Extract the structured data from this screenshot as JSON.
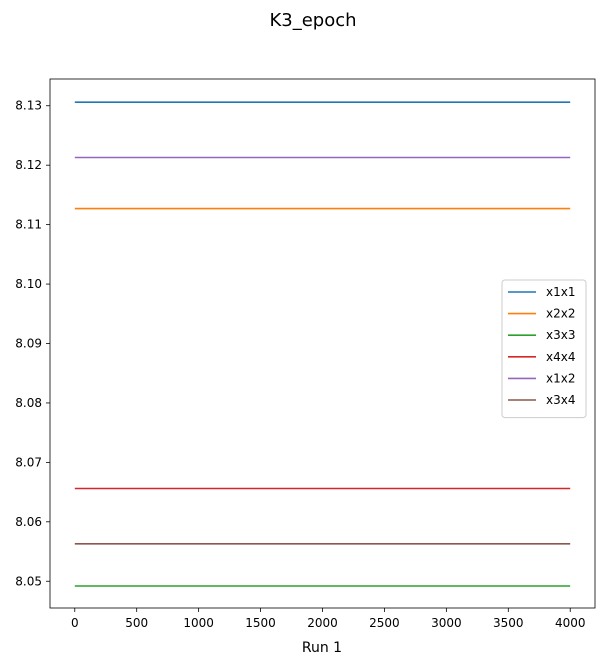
{
  "chart_data": {
    "type": "line",
    "title": "K3_epoch",
    "xlabel": "Run 1",
    "ylabel": "",
    "xlim": [
      -200,
      4200
    ],
    "ylim": [
      8.0455,
      8.1345
    ],
    "xticks": [
      0,
      500,
      1000,
      1500,
      2000,
      2500,
      3000,
      3500,
      4000
    ],
    "xtick_labels": [
      "0",
      "500",
      "1000",
      "1500",
      "2000",
      "2500",
      "3000",
      "3500",
      "4000"
    ],
    "yticks": [
      8.05,
      8.06,
      8.07,
      8.08,
      8.09,
      8.1,
      8.11,
      8.12,
      8.13
    ],
    "ytick_labels": [
      "8.05",
      "8.06",
      "8.07",
      "8.08",
      "8.09",
      "8.10",
      "8.11",
      "8.12",
      "8.13"
    ],
    "grid": false,
    "legend_position": "center-right",
    "x": [
      0,
      4000
    ],
    "series": [
      {
        "name": "x1x1",
        "color": "#1f77b4",
        "values": [
          8.1306,
          8.1306
        ]
      },
      {
        "name": "x2x2",
        "color": "#ff7f0e",
        "values": [
          8.1127,
          8.1127
        ]
      },
      {
        "name": "x3x3",
        "color": "#2ca02c",
        "values": [
          8.0492,
          8.0492
        ]
      },
      {
        "name": "x4x4",
        "color": "#d62728",
        "values": [
          8.0656,
          8.0656
        ]
      },
      {
        "name": "x1x2",
        "color": "#9467bd",
        "values": [
          8.1213,
          8.1213
        ]
      },
      {
        "name": "x3x4",
        "color": "#8c564b",
        "values": [
          8.0563,
          8.0563
        ]
      }
    ]
  }
}
